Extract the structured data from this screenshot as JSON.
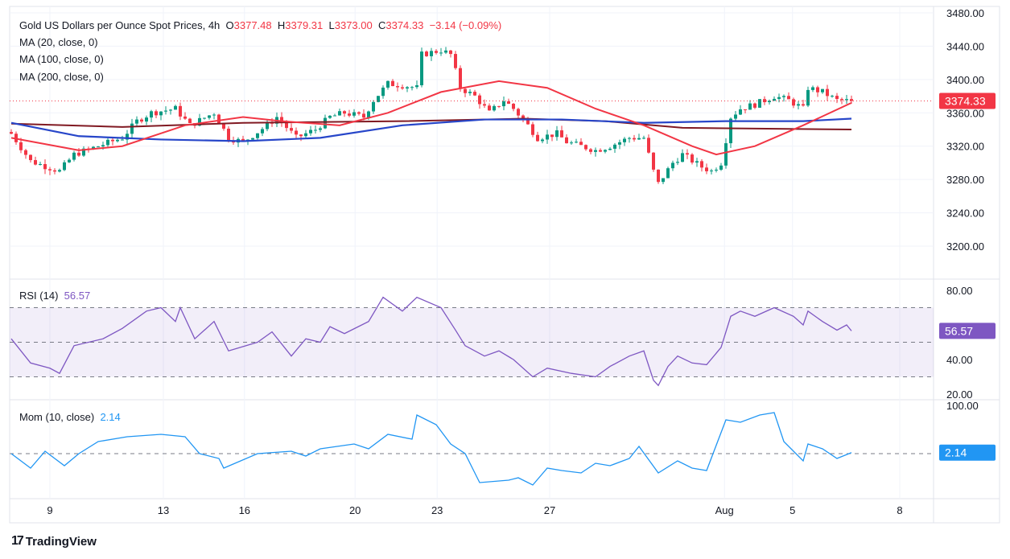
{
  "header": {
    "symbol": "Gold US Dollars per Ounce Spot Prices, 4h",
    "o_label": "O",
    "o": "3377.48",
    "h_label": "H",
    "h": "3379.31",
    "l_label": "L",
    "l": "3373.00",
    "c_label": "C",
    "c": "3374.33",
    "change": "−3.14 (−0.09%)"
  },
  "indicators": {
    "ma20": "MA (20, close, 0)",
    "ma100": "MA (100, close, 0)",
    "ma200": "MA (200, close, 0)",
    "rsi_label": "RSI (14)",
    "rsi_value": "56.57",
    "mom_label": "Mom (10, close)",
    "mom_value": "2.14"
  },
  "branding": {
    "logo_text": "TradingView"
  },
  "colors": {
    "up": "#089981",
    "down": "#f23645",
    "ma20": "#f23645",
    "ma100": "#2746c9",
    "ma200": "#801922",
    "rsi": "#7e57c2",
    "mom": "#2196f3"
  },
  "chart_data": [
    {
      "type": "candlestick",
      "title": "Gold US Dollars per Ounce Spot Prices, 4h",
      "x_unit": "bar index",
      "last_price": "3374.33",
      "ylim": [
        3180,
        3480
      ],
      "y_ticks": [
        "3480.00",
        "3440.00",
        "3400.00",
        "3360.00",
        "3320.00",
        "3280.00",
        "3240.00",
        "3200.00"
      ],
      "y_tick_values": [
        3480,
        3440,
        3400,
        3360,
        3320,
        3280,
        3240,
        3200
      ],
      "x_ticks": [
        {
          "label": "9",
          "bar": 8
        },
        {
          "label": "13",
          "bar": 31.5
        },
        {
          "label": "16",
          "bar": 48.3
        },
        {
          "label": "20",
          "bar": 71.2
        },
        {
          "label": "23",
          "bar": 88.2
        },
        {
          "label": "27",
          "bar": 111.5
        },
        {
          "label": "Aug",
          "bar": 147.7
        },
        {
          "label": "5",
          "bar": 161.8
        },
        {
          "label": "8",
          "bar": 184
        }
      ],
      "close_path": [
        [
          0,
          3335
        ],
        [
          4,
          3302
        ],
        [
          10,
          3290
        ],
        [
          13,
          3310
        ],
        [
          18,
          3320
        ],
        [
          23,
          3330
        ],
        [
          26,
          3350
        ],
        [
          29,
          3360
        ],
        [
          34,
          3365
        ],
        [
          37,
          3345
        ],
        [
          42,
          3360
        ],
        [
          45,
          3330
        ],
        [
          48,
          3325
        ],
        [
          53,
          3345
        ],
        [
          55,
          3355
        ],
        [
          59,
          3330
        ],
        [
          63,
          3340
        ],
        [
          66,
          3355
        ],
        [
          69,
          3360
        ],
        [
          73,
          3355
        ],
        [
          75,
          3375
        ],
        [
          78,
          3395
        ],
        [
          81,
          3393
        ],
        [
          84,
          3390
        ],
        [
          85,
          3430
        ],
        [
          89,
          3435
        ],
        [
          91,
          3430
        ],
        [
          93,
          3390
        ],
        [
          96,
          3380
        ],
        [
          99,
          3360
        ],
        [
          102,
          3375
        ],
        [
          104,
          3365
        ],
        [
          107,
          3345
        ],
        [
          109,
          3330
        ],
        [
          113,
          3335
        ],
        [
          115,
          3325
        ],
        [
          118,
          3320
        ],
        [
          121,
          3315
        ],
        [
          124,
          3320
        ],
        [
          128,
          3330
        ],
        [
          131,
          3330
        ],
        [
          133,
          3290
        ],
        [
          134,
          3275
        ],
        [
          137,
          3300
        ],
        [
          139,
          3310
        ],
        [
          143,
          3295
        ],
        [
          145,
          3290
        ],
        [
          147,
          3300
        ],
        [
          149,
          3355
        ],
        [
          151,
          3365
        ],
        [
          154,
          3370
        ],
        [
          158,
          3380
        ],
        [
          161,
          3375
        ],
        [
          164,
          3365
        ],
        [
          165,
          3390
        ],
        [
          168,
          3385
        ],
        [
          171,
          3375
        ],
        [
          174,
          3374.33
        ]
      ],
      "series": [
        {
          "name": "MA 20",
          "points": [
            [
              0,
              3330
            ],
            [
              14,
              3315
            ],
            [
              23,
              3320
            ],
            [
              36,
              3345
            ],
            [
              48,
              3355
            ],
            [
              56,
              3350
            ],
            [
              68,
              3345
            ],
            [
              78,
              3360
            ],
            [
              89,
              3385
            ],
            [
              101,
              3398
            ],
            [
              111,
              3390
            ],
            [
              121,
              3365
            ],
            [
              131,
              3345
            ],
            [
              141,
              3320
            ],
            [
              146,
              3310
            ],
            [
              154,
              3320
            ],
            [
              164,
              3345
            ],
            [
              174,
              3372
            ]
          ]
        },
        {
          "name": "MA 100",
          "points": [
            [
              0,
              3348
            ],
            [
              14,
              3332
            ],
            [
              31,
              3328
            ],
            [
              48,
              3326
            ],
            [
              64,
              3330
            ],
            [
              81,
              3345
            ],
            [
              98,
              3352
            ],
            [
              114,
              3352
            ],
            [
              131,
              3348
            ],
            [
              148,
              3350
            ],
            [
              164,
              3350
            ],
            [
              174,
              3353
            ]
          ]
        },
        {
          "name": "MA 200",
          "points": [
            [
              0,
              3347
            ],
            [
              23,
              3343
            ],
            [
              48,
              3348
            ],
            [
              81,
              3350
            ],
            [
              106,
              3353
            ],
            [
              123,
              3350
            ],
            [
              139,
              3342
            ],
            [
              174,
              3340
            ]
          ]
        }
      ]
    },
    {
      "type": "line",
      "title": "RSI (14)",
      "ylim": [
        20,
        80
      ],
      "band": [
        30,
        70
      ],
      "midline": 50,
      "y_ticks": [
        "80.00",
        "40.00",
        "20.00"
      ],
      "y_tick_values": [
        80,
        40,
        20
      ],
      "points": [
        [
          0,
          52
        ],
        [
          4,
          38
        ],
        [
          8,
          35
        ],
        [
          10,
          32
        ],
        [
          13,
          48
        ],
        [
          19,
          52
        ],
        [
          23,
          58
        ],
        [
          28,
          68
        ],
        [
          31,
          70
        ],
        [
          34,
          62
        ],
        [
          35,
          70
        ],
        [
          38,
          52
        ],
        [
          42,
          62
        ],
        [
          45,
          45
        ],
        [
          51,
          50
        ],
        [
          54,
          56
        ],
        [
          58,
          42
        ],
        [
          61,
          52
        ],
        [
          64,
          50
        ],
        [
          66,
          59
        ],
        [
          69,
          55
        ],
        [
          74,
          62
        ],
        [
          77,
          76
        ],
        [
          81,
          68
        ],
        [
          84,
          76
        ],
        [
          89,
          70
        ],
        [
          92,
          57
        ],
        [
          94,
          48
        ],
        [
          98,
          42
        ],
        [
          101,
          45
        ],
        [
          104,
          40
        ],
        [
          108,
          30
        ],
        [
          111,
          35
        ],
        [
          116,
          32
        ],
        [
          121,
          30
        ],
        [
          124,
          36
        ],
        [
          128,
          42
        ],
        [
          131,
          45
        ],
        [
          133,
          28
        ],
        [
          134,
          25
        ],
        [
          136,
          36
        ],
        [
          138,
          42
        ],
        [
          141,
          38
        ],
        [
          144,
          37
        ],
        [
          147,
          47
        ],
        [
          149,
          65
        ],
        [
          151,
          68
        ],
        [
          154,
          65
        ],
        [
          158,
          70
        ],
        [
          162,
          65
        ],
        [
          164,
          60
        ],
        [
          165,
          68
        ],
        [
          168,
          62
        ],
        [
          171,
          57
        ],
        [
          173,
          60
        ],
        [
          174,
          56.57
        ]
      ]
    },
    {
      "type": "line",
      "title": "Mom (10, close)",
      "ylim": [
        -100,
        100
      ],
      "zero_line": 0,
      "y_ticks": [
        "100.00"
      ],
      "y_tick_values": [
        100
      ],
      "points": [
        [
          0,
          0
        ],
        [
          4,
          -30
        ],
        [
          7,
          5
        ],
        [
          11,
          -25
        ],
        [
          14,
          0
        ],
        [
          18,
          25
        ],
        [
          24,
          35
        ],
        [
          31,
          40
        ],
        [
          36,
          35
        ],
        [
          39,
          0
        ],
        [
          43,
          -10
        ],
        [
          44,
          -30
        ],
        [
          51,
          0
        ],
        [
          58,
          5
        ],
        [
          61,
          -5
        ],
        [
          64,
          10
        ],
        [
          71,
          20
        ],
        [
          74,
          10
        ],
        [
          78,
          40
        ],
        [
          83,
          30
        ],
        [
          84,
          80
        ],
        [
          88,
          60
        ],
        [
          91,
          20
        ],
        [
          94,
          0
        ],
        [
          97,
          -60
        ],
        [
          103,
          -55
        ],
        [
          105,
          -50
        ],
        [
          108,
          -65
        ],
        [
          111,
          -30
        ],
        [
          114,
          -35
        ],
        [
          118,
          -40
        ],
        [
          121,
          -20
        ],
        [
          124,
          -25
        ],
        [
          128,
          -10
        ],
        [
          130,
          15
        ],
        [
          134,
          -40
        ],
        [
          138,
          -15
        ],
        [
          141,
          -30
        ],
        [
          144,
          -35
        ],
        [
          148,
          70
        ],
        [
          151,
          65
        ],
        [
          155,
          80
        ],
        [
          158,
          85
        ],
        [
          160,
          25
        ],
        [
          164,
          -15
        ],
        [
          165,
          20
        ],
        [
          168,
          10
        ],
        [
          171,
          -10
        ],
        [
          174,
          2.14
        ]
      ]
    }
  ]
}
